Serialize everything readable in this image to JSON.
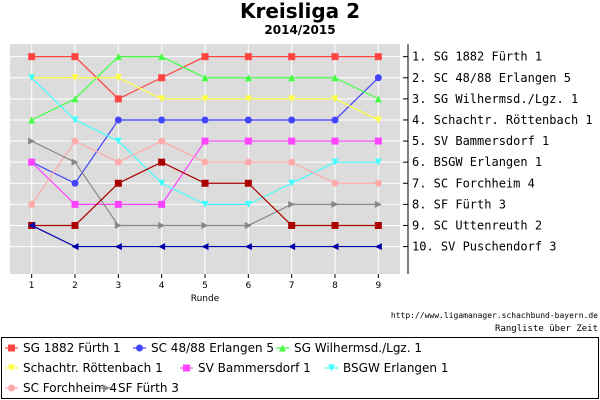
{
  "title": "Kreisliga 2",
  "subtitle": "2014/2015",
  "credit": "http://www.ligamanager.schachbund-bayern.de",
  "footer": "Rangliste über Zeit",
  "chart_data": {
    "type": "line",
    "title": "Kreisliga 2",
    "subtitle": "2014/2015",
    "xlabel": "Runde",
    "ylabel": "",
    "x": [
      1,
      2,
      3,
      4,
      5,
      6,
      7,
      8,
      9
    ],
    "ylim": [
      1,
      10
    ],
    "y_inverted": true,
    "grid": true,
    "legend_placement": "bottom",
    "rank_labels": [
      "1. SG 1882 Fürth 1",
      "2. SC 48/88 Erlangen 5",
      "3. SG Wilhermsd./Lgz. 1",
      "4. Schachtr. Röttenbach 1",
      "5. SV Bammersdorf 1",
      "6. BSGW Erlangen 1",
      "7. SC Forchheim 4",
      "8. SF Fürth 3",
      "9. SC Uttenreuth 2",
      "10. SV Puschendorf 3"
    ],
    "series": [
      {
        "name": "SG 1882 Fürth 1",
        "color": "#ff4444",
        "marker": "square",
        "values": [
          1,
          1,
          3,
          2,
          1,
          1,
          1,
          1,
          1
        ]
      },
      {
        "name": "SC 48/88 Erlangen 5",
        "color": "#4444ff",
        "marker": "circle",
        "values": [
          6,
          7,
          4,
          4,
          4,
          4,
          4,
          4,
          2
        ]
      },
      {
        "name": "SG Wilhermsd./Lgz. 1",
        "color": "#44ff44",
        "marker": "triangle-up",
        "values": [
          4,
          3,
          1,
          1,
          2,
          2,
          2,
          2,
          3
        ]
      },
      {
        "name": "Schachtr. Röttenbach 1",
        "color": "#ffff44",
        "marker": "triangle-down",
        "values": [
          2,
          2,
          2,
          3,
          3,
          3,
          3,
          3,
          4
        ]
      },
      {
        "name": "SV Bammersdorf 1",
        "color": "#ff44ff",
        "marker": "square",
        "values": [
          6,
          8,
          8,
          8,
          5,
          5,
          5,
          5,
          5
        ]
      },
      {
        "name": "BSGW Erlangen 1",
        "color": "#44ffff",
        "marker": "triangle-down",
        "values": [
          2,
          4,
          5,
          7,
          8,
          8,
          7,
          6,
          6
        ]
      },
      {
        "name": "SC Forchheim 4",
        "color": "#ffaaaa",
        "marker": "circle",
        "values": [
          8,
          5,
          6,
          5,
          6,
          6,
          6,
          7,
          7
        ]
      },
      {
        "name": "SF Fürth 3",
        "color": "#888888",
        "marker": "triangle-right",
        "values": [
          5,
          6,
          9,
          9,
          9,
          9,
          8,
          8,
          8
        ]
      },
      {
        "name": "SC Uttenreuth 2",
        "color": "#aa0000",
        "marker": "square",
        "values": [
          9,
          9,
          7,
          6,
          7,
          7,
          9,
          9,
          9
        ]
      },
      {
        "name": "SV Puschendorf 3",
        "color": "#0000aa",
        "marker": "triangle-left",
        "values": [
          9,
          10,
          10,
          10,
          10,
          10,
          10,
          10,
          10
        ]
      }
    ]
  }
}
